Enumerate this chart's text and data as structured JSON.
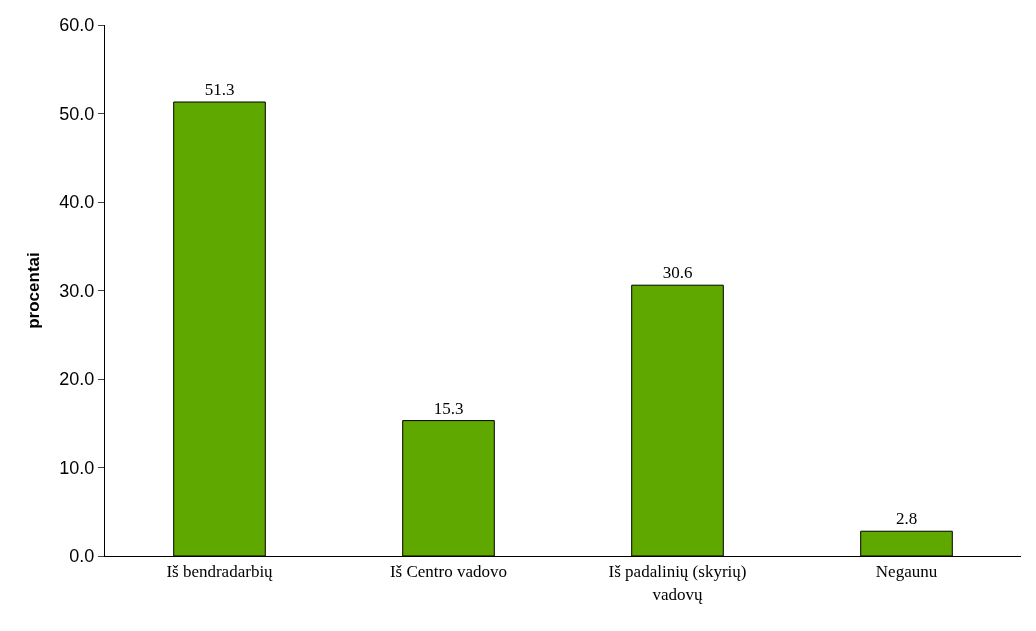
{
  "chart_data": {
    "type": "bar",
    "ylabel": "procentai",
    "categories": [
      "Iš bendradarbių",
      "Iš Centro vadovo",
      "Iš padalinių (skyrių) vadovų",
      "Negaunu"
    ],
    "values": [
      51.3,
      15.3,
      30.6,
      2.8
    ],
    "color": "#5fa800",
    "ylim": [
      0,
      60
    ],
    "yticks": [
      {
        "value": 0,
        "label": "0.0"
      },
      {
        "value": 10,
        "label": "10.0"
      },
      {
        "value": 20,
        "label": "20.0"
      },
      {
        "value": 30,
        "label": "30.0"
      },
      {
        "value": 40,
        "label": "40.0"
      },
      {
        "value": 50,
        "label": "50.0"
      },
      {
        "value": 60,
        "label": "60.0"
      }
    ],
    "data_labels": true
  }
}
